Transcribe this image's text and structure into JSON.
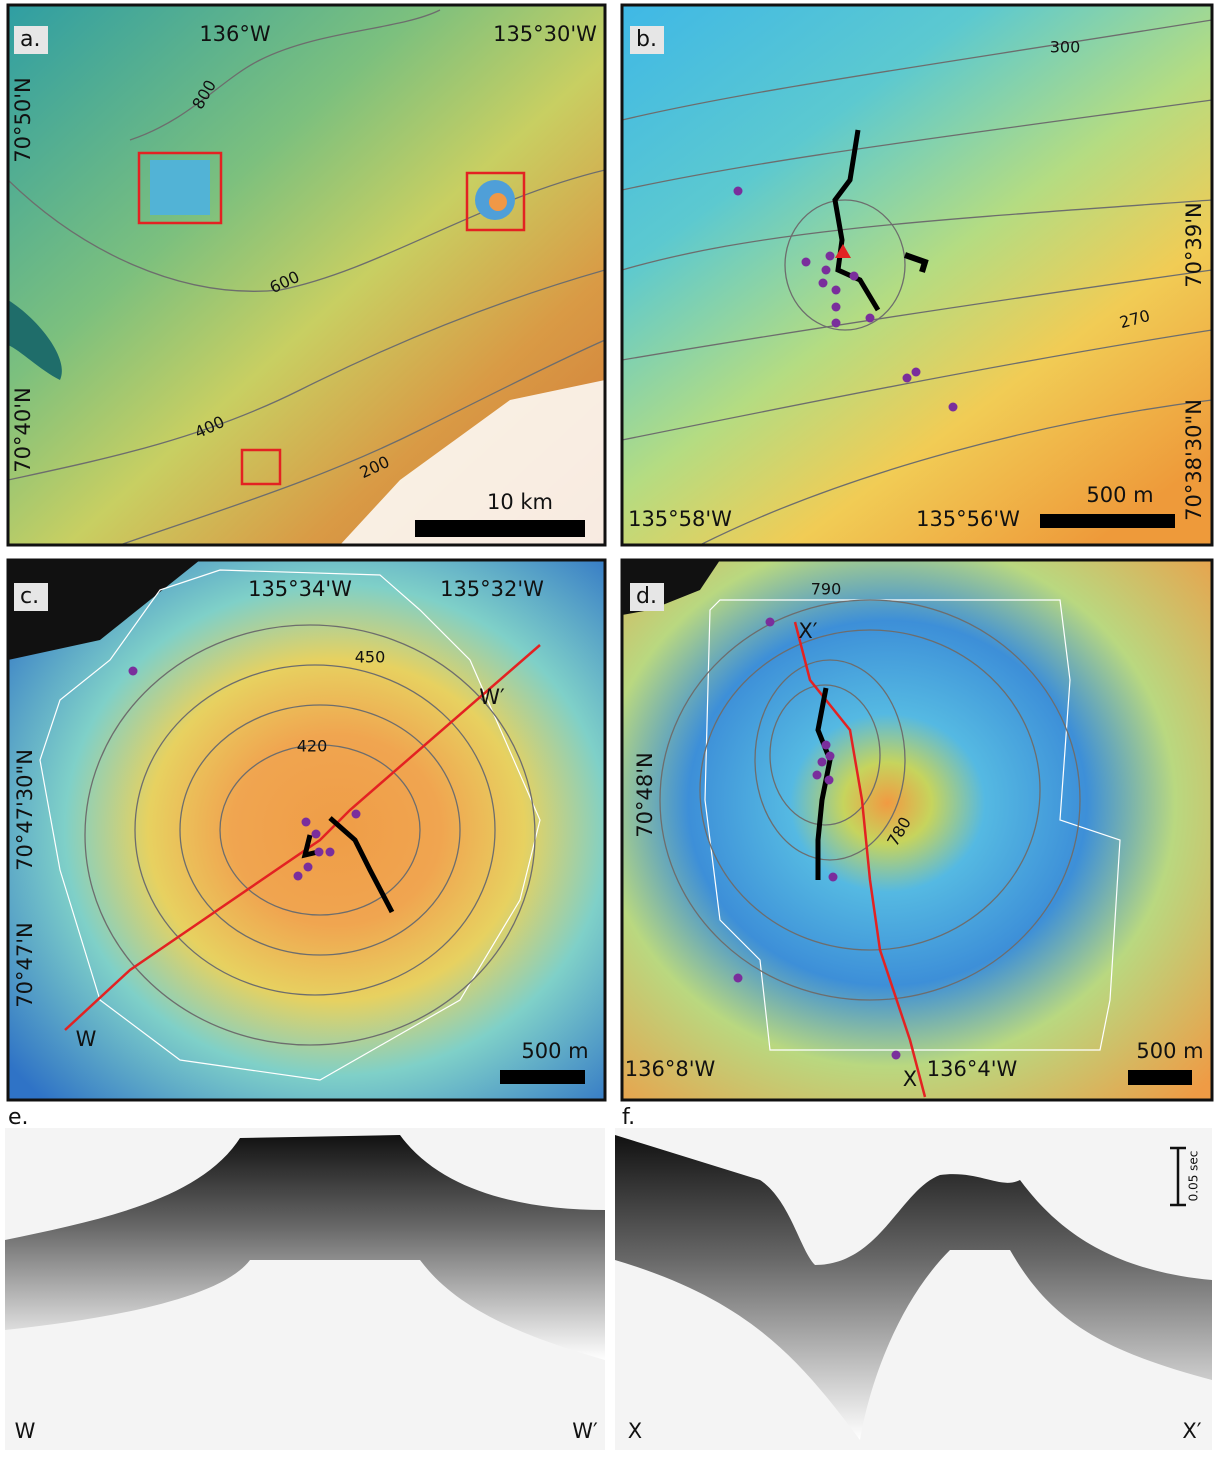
{
  "panels": [
    {
      "label": "a.",
      "longitudes": [
        "136°W",
        "135°30'W"
      ],
      "latitudes": [
        "70°50'N",
        "70°40'N"
      ],
      "contour_labels": [
        "800",
        "600",
        "400",
        "200"
      ],
      "scale": "10 km"
    },
    {
      "label": "b.",
      "longitudes": [
        "135°58'W",
        "135°56'W"
      ],
      "latitudes": [
        "70°39'N",
        "70°38'30\"N"
      ],
      "contour_labels": [
        "300",
        "270"
      ],
      "scale": "500 m"
    },
    {
      "label": "c.",
      "longitudes": [
        "135°34'W",
        "135°32'W"
      ],
      "latitudes": [
        "70°47'30\"N",
        "70°47'N"
      ],
      "contour_labels": [
        "450",
        "420"
      ],
      "line_labels": [
        "W′",
        "W"
      ],
      "scale": "500 m"
    },
    {
      "label": "d.",
      "longitudes": [
        "136°8'W",
        "136°4'W"
      ],
      "latitudes": [
        "70°48'N"
      ],
      "contour_labels": [
        "790",
        "780"
      ],
      "line_labels": [
        "X′",
        "X"
      ],
      "scale": "500 m"
    }
  ],
  "profiles": [
    {
      "label": "e.",
      "left": "W",
      "right": "W′"
    },
    {
      "label": "f.",
      "left": "X",
      "right": "X′",
      "scale": "0.05 sec"
    }
  ]
}
